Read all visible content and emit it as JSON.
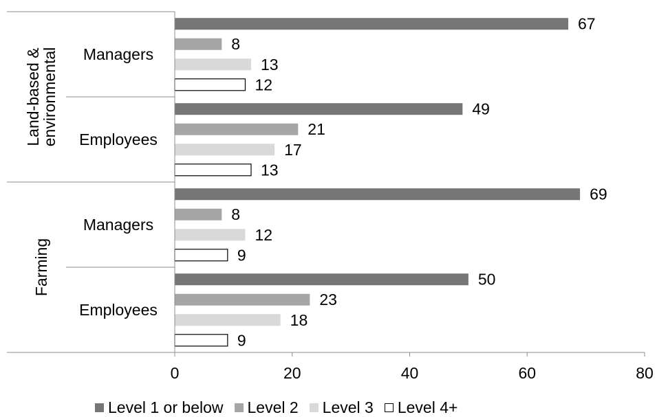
{
  "chart_data": {
    "type": "bar",
    "orientation": "horizontal",
    "groups": [
      {
        "label": "Land-based & environmental",
        "subgroups": [
          {
            "label": "Managers",
            "values": [
              67,
              8,
              13,
              12
            ]
          },
          {
            "label": "Employees",
            "values": [
              49,
              21,
              17,
              13
            ]
          }
        ]
      },
      {
        "label": "Farming",
        "subgroups": [
          {
            "label": "Managers",
            "values": [
              69,
              8,
              12,
              9
            ]
          },
          {
            "label": "Employees",
            "values": [
              50,
              23,
              18,
              9
            ]
          }
        ]
      }
    ],
    "series": [
      {
        "name": "Level 1 or below",
        "color": "#767676"
      },
      {
        "name": "Level 2",
        "color": "#a6a6a6"
      },
      {
        "name": "Level 3",
        "color": "#d9d9d9"
      },
      {
        "name": "Level 4+",
        "color": "#ffffff",
        "stroke": "#000000"
      }
    ],
    "xlim": [
      0,
      80
    ],
    "xticks": [
      0,
      20,
      40,
      60,
      80
    ],
    "grid": false,
    "legend_position": "bottom",
    "data_labels": true
  }
}
